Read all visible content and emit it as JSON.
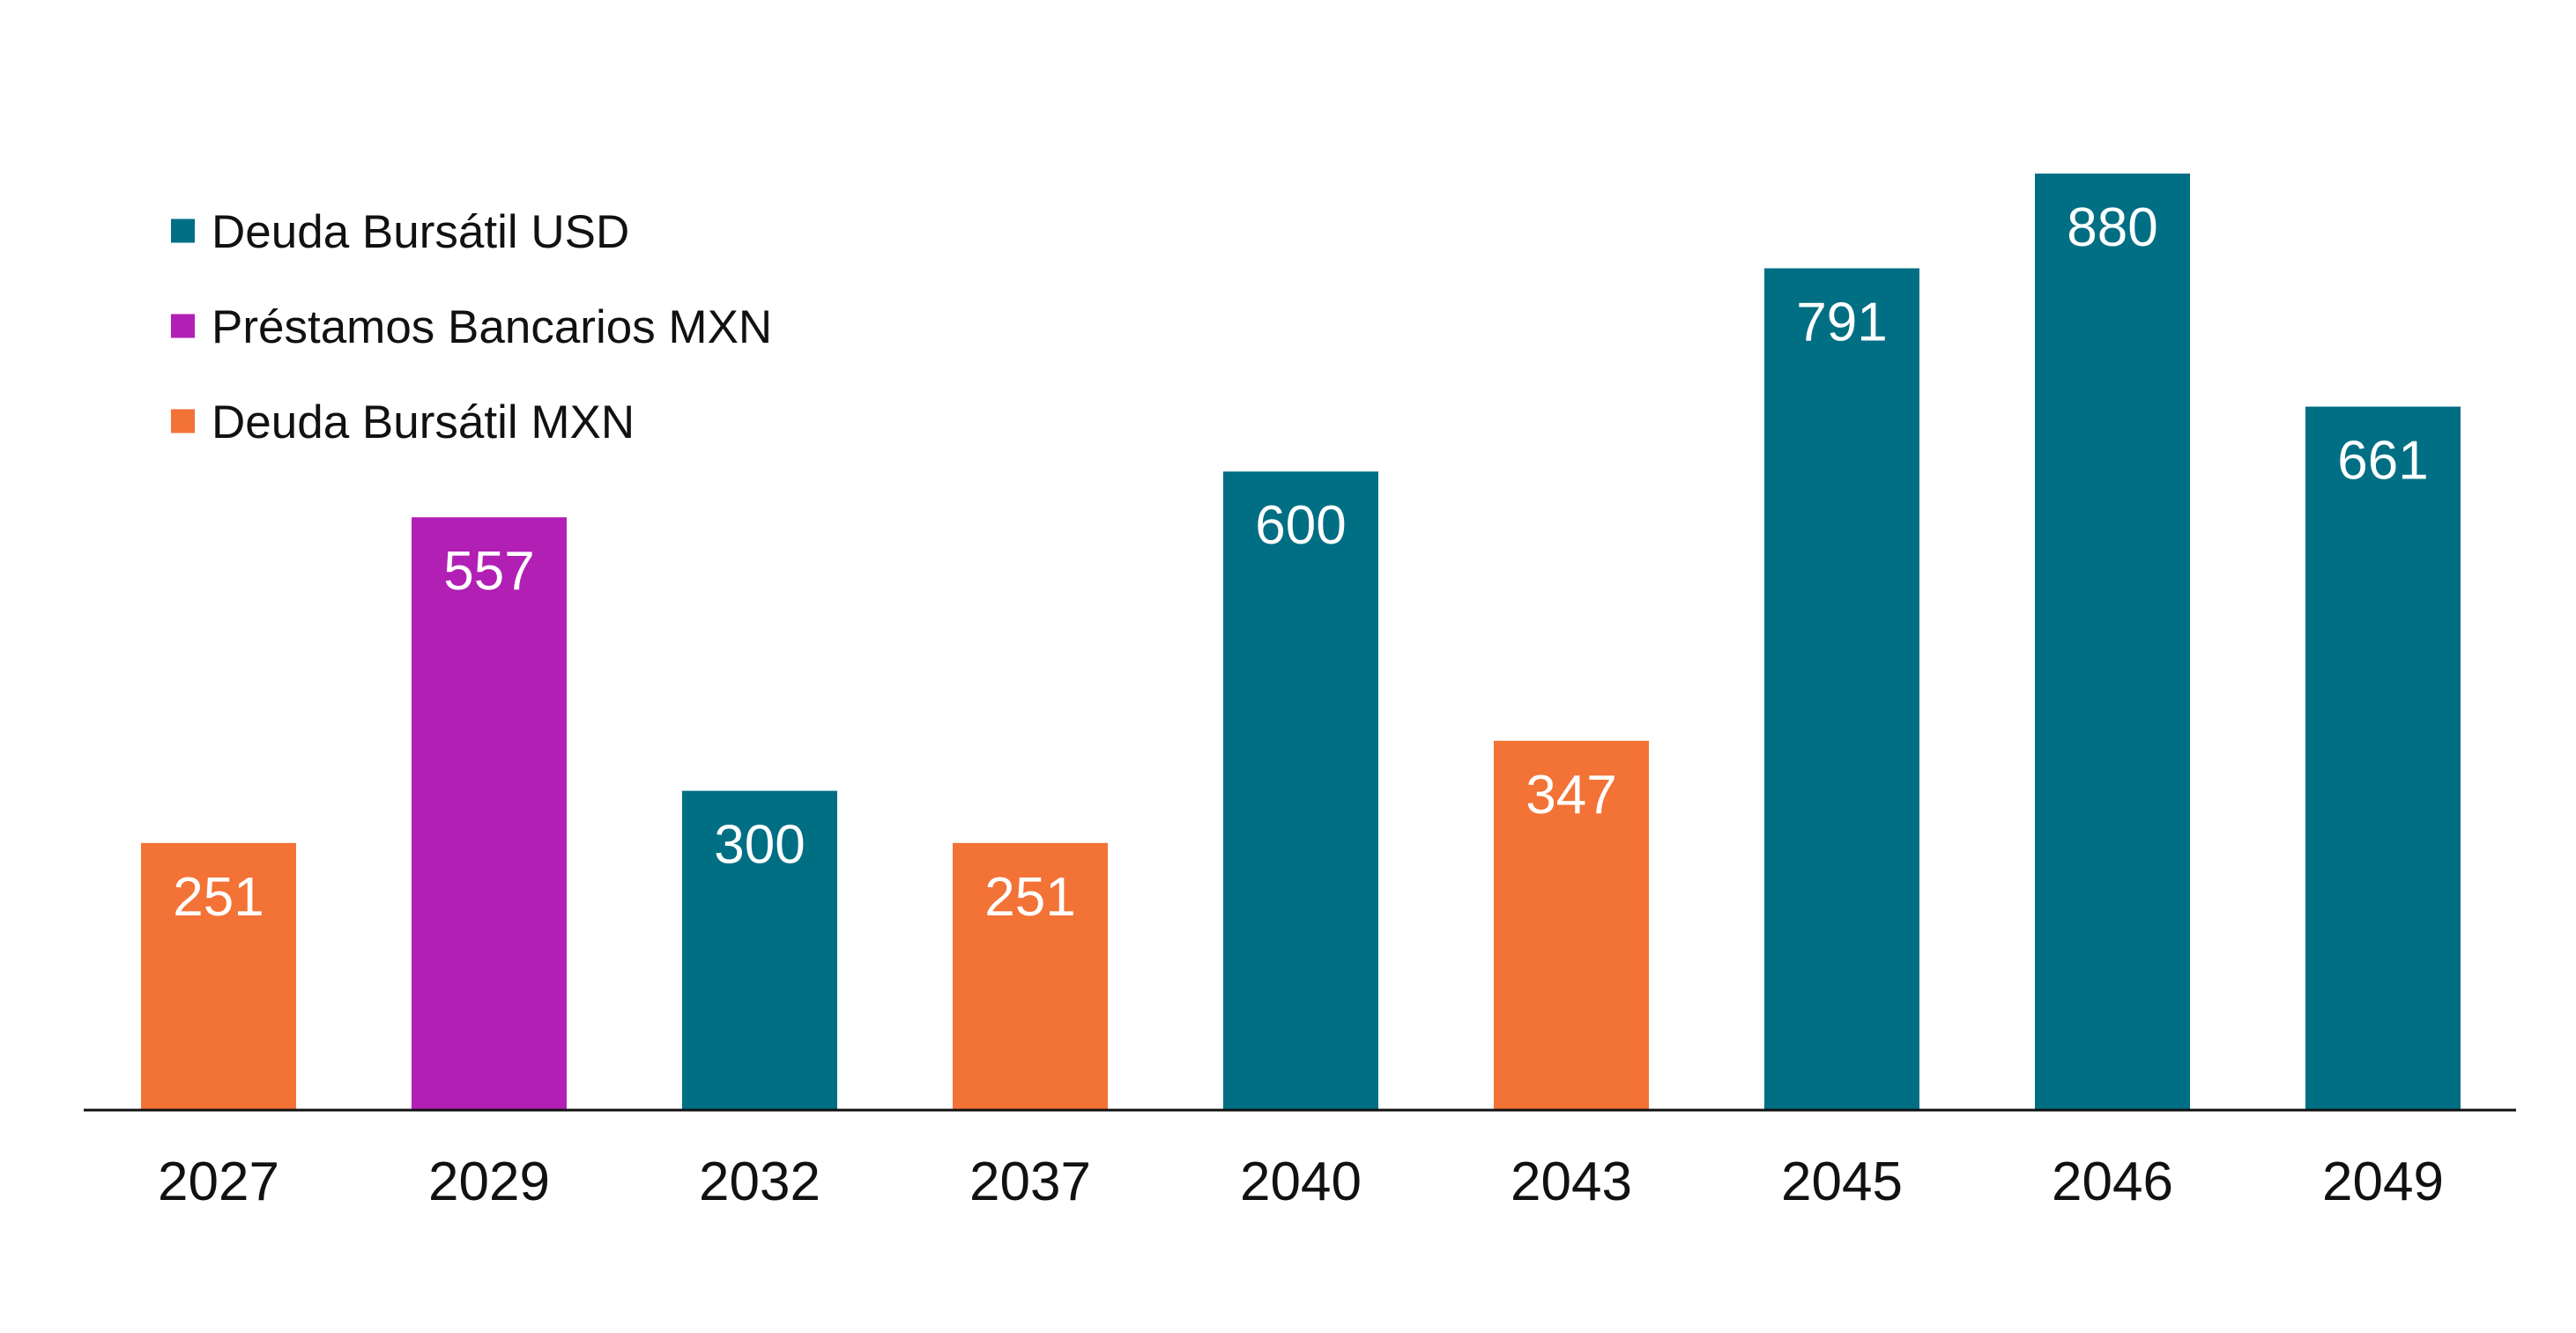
{
  "chart_data": {
    "type": "bar",
    "categories": [
      "2027",
      "2029",
      "2032",
      "2037",
      "2040",
      "2043",
      "2045",
      "2046",
      "2049"
    ],
    "values": [
      251,
      557,
      300,
      251,
      600,
      347,
      791,
      880,
      661
    ],
    "bar_series": [
      "Deuda Bursátil MXN",
      "Préstamos Bancarios MXN",
      "Deuda Bursátil USD",
      "Deuda Bursátil MXN",
      "Deuda Bursátil USD",
      "Deuda Bursátil MXN",
      "Deuda Bursátil USD",
      "Deuda Bursátil USD",
      "Deuda Bursátil USD"
    ],
    "series": [
      {
        "name": "Deuda Bursátil USD",
        "color": "#006F84"
      },
      {
        "name": "Préstamos Bancarios MXN",
        "color": "#B11FB5"
      },
      {
        "name": "Deuda Bursátil MXN",
        "color": "#F37236"
      }
    ],
    "title": "",
    "xlabel": "",
    "ylabel": "",
    "ylim": [
      0,
      880
    ],
    "grid": false,
    "data_labels": true,
    "legend": "top-left"
  }
}
